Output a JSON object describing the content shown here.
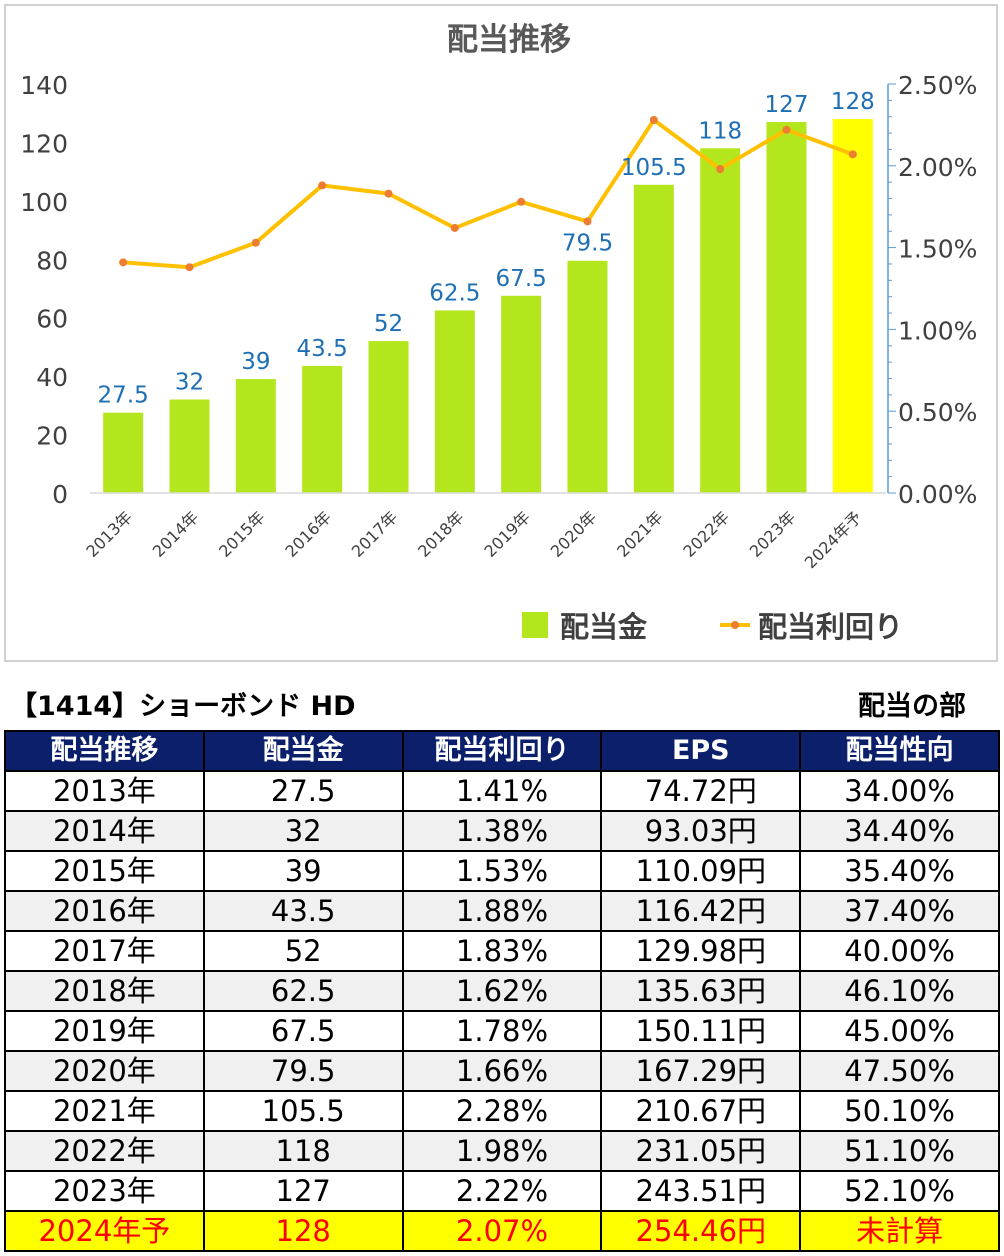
{
  "chart_data": {
    "type": "bar+line",
    "title": "配当推移",
    "categories": [
      "2013年",
      "2014年",
      "2015年",
      "2016年",
      "2017年",
      "2018年",
      "2019年",
      "2020年",
      "2021年",
      "2022年",
      "2023年",
      "2024年予"
    ],
    "series": [
      {
        "name": "配当金",
        "type": "bar",
        "axis": "left",
        "values": [
          27.5,
          32,
          39,
          43.5,
          52,
          62.5,
          67.5,
          79.5,
          105.5,
          118,
          127,
          128
        ],
        "data_labels": [
          "27.5",
          "32",
          "39",
          "43.5",
          "52",
          "62.5",
          "67.5",
          "79.5",
          "105.5",
          "118",
          "127",
          "128"
        ]
      },
      {
        "name": "配当利回り",
        "type": "line",
        "axis": "right",
        "values": [
          1.41,
          1.38,
          1.53,
          1.88,
          1.83,
          1.62,
          1.78,
          1.66,
          2.28,
          1.98,
          2.22,
          2.07
        ]
      }
    ],
    "y_left": {
      "min": 0,
      "max": 140,
      "ticks": [
        "0",
        "20",
        "40",
        "60",
        "80",
        "100",
        "120",
        "140"
      ]
    },
    "y_right": {
      "min": 0,
      "max": 2.5,
      "ticks": [
        "0.00%",
        "0.50%",
        "1.00%",
        "1.50%",
        "2.00%",
        "2.50%"
      ]
    },
    "legend": "bottom-right",
    "grid": false,
    "colors": {
      "bar": "#b4e61e",
      "bar_highlight": "#ffff00",
      "line": "#ffc000",
      "marker": "#ed7d31",
      "data_label": "#1f6fb5",
      "title": "#595959",
      "axis_text": "#404040",
      "right_axis": "#5b9bd5"
    }
  },
  "table": {
    "title": "【1414】ショーボンド HD",
    "section": "配当の部",
    "headers": [
      "配当推移",
      "配当金",
      "配当利回り",
      "EPS",
      "配当性向"
    ],
    "rows": [
      [
        "2013年",
        "27.5",
        "1.41%",
        "74.72円",
        "34.00%"
      ],
      [
        "2014年",
        "32",
        "1.38%",
        "93.03円",
        "34.40%"
      ],
      [
        "2015年",
        "39",
        "1.53%",
        "110.09円",
        "35.40%"
      ],
      [
        "2016年",
        "43.5",
        "1.88%",
        "116.42円",
        "37.40%"
      ],
      [
        "2017年",
        "52",
        "1.83%",
        "129.98円",
        "40.00%"
      ],
      [
        "2018年",
        "62.5",
        "1.62%",
        "135.63円",
        "46.10%"
      ],
      [
        "2019年",
        "67.5",
        "1.78%",
        "150.11円",
        "45.00%"
      ],
      [
        "2020年",
        "79.5",
        "1.66%",
        "167.29円",
        "47.50%"
      ],
      [
        "2021年",
        "105.5",
        "2.28%",
        "210.67円",
        "50.10%"
      ],
      [
        "2022年",
        "118",
        "1.98%",
        "231.05円",
        "51.10%"
      ],
      [
        "2023年",
        "127",
        "2.22%",
        "243.51円",
        "52.10%"
      ],
      [
        "2024年予",
        "128",
        "2.07%",
        "254.46円",
        "未計算"
      ]
    ]
  }
}
